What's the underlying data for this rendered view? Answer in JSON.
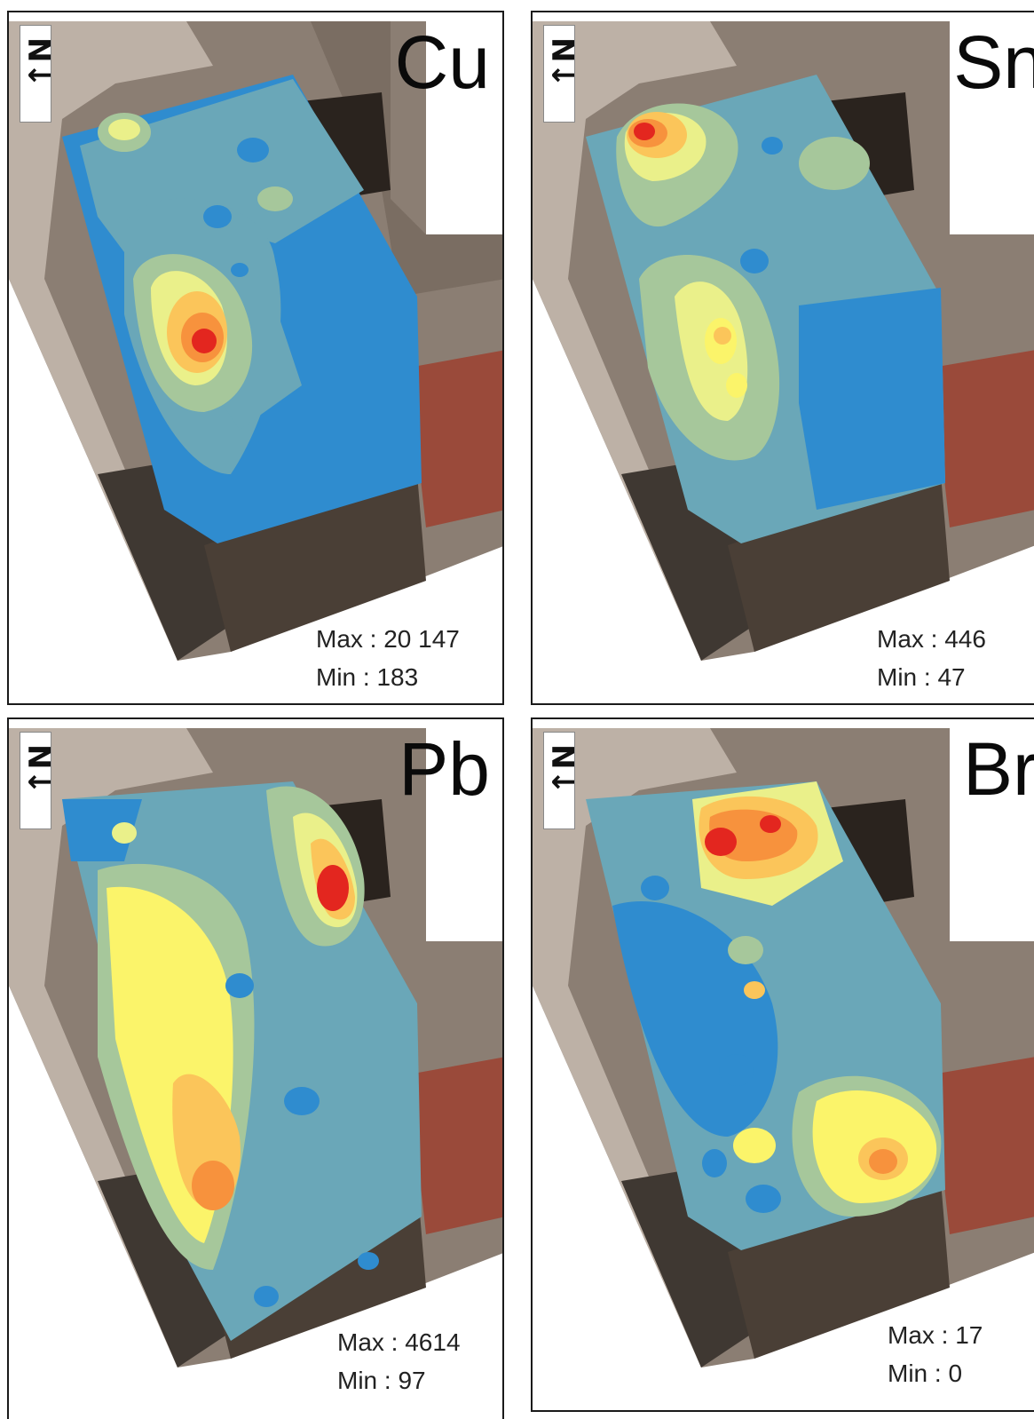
{
  "panels": [
    {
      "element": "Cu",
      "max_label": "Max : 20 147",
      "min_label": "Min : 183",
      "max": 20147,
      "min": 183
    },
    {
      "element": "Sn",
      "max_label": "Max : 446",
      "min_label": "Min : 47",
      "max": 446,
      "min": 47
    },
    {
      "element": "Pb",
      "max_label": "Max : 4614",
      "min_label": "Min : 97",
      "max": 4614,
      "min": 97
    },
    {
      "element": "Br",
      "max_label": "Max : 17",
      "min_label": "Min : 0",
      "max": 17,
      "min": 0
    }
  ],
  "north_arrow": {
    "label": "N",
    "icon": "north-arrow-icon"
  },
  "colors": {
    "low_blue": "#2f8ccf",
    "blue_teal": "#6aa7b8",
    "sage": "#a6c79b",
    "light_yellow": "#eaf08a",
    "yellow": "#fbf46a",
    "orange_light": "#fbc55a",
    "orange": "#f7923d",
    "red": "#e3261f",
    "photo_dark": "#4a3f36",
    "photo_light": "#b9aea4",
    "photo_red": "#9a4a3a"
  }
}
